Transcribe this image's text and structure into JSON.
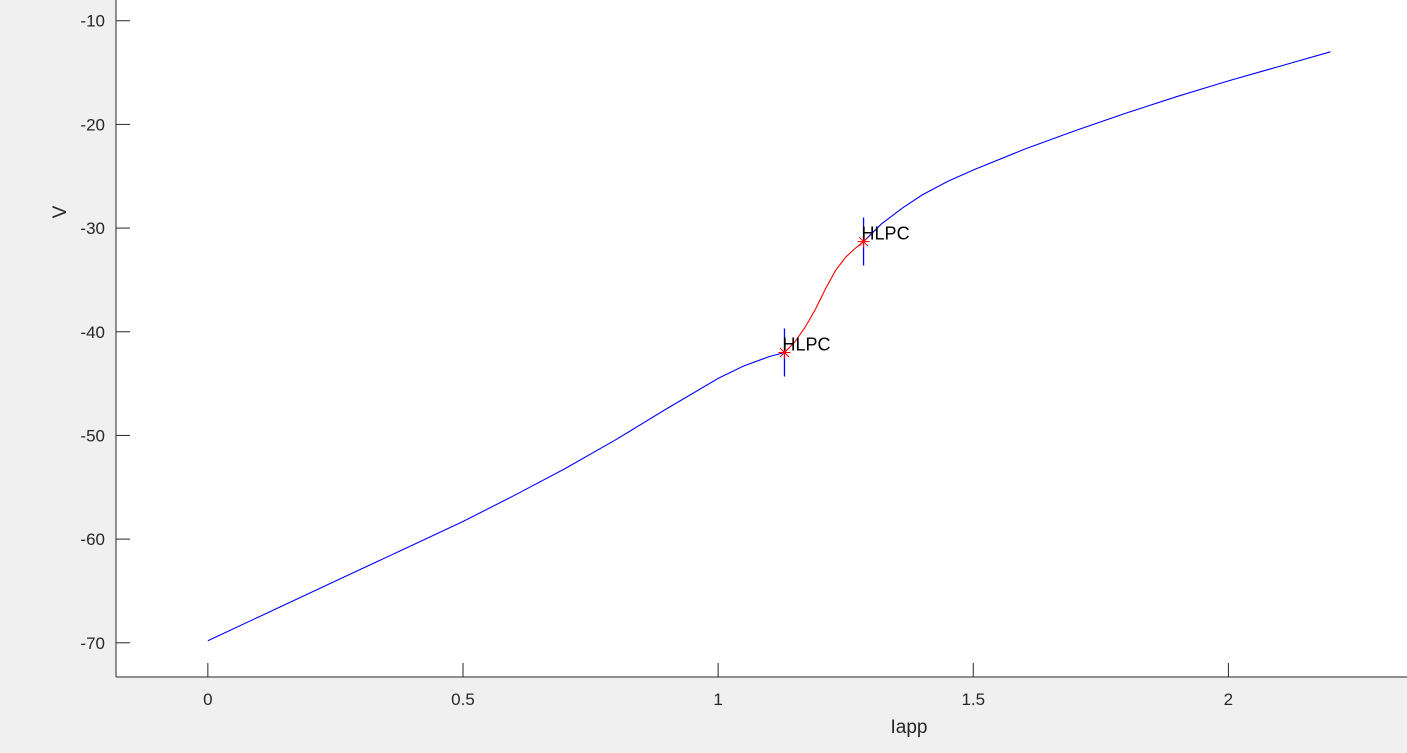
{
  "colors": {
    "figure_background": "#f0f0f0",
    "axes_background": "#ffffff",
    "stable_branch": "#0000ff",
    "unstable_branch": "#ff0000",
    "axis_color": "#262626",
    "annotation": "#000000"
  },
  "chart_data": {
    "type": "line",
    "title": "",
    "xlabel": "Iapp",
    "ylabel": "V",
    "xlim": [
      -0.18,
      2.35
    ],
    "ylim": [
      -73.3,
      -8
    ],
    "xticks": [
      0,
      0.5,
      1,
      1.5,
      2
    ],
    "xtick_labels": [
      "0",
      "0.5",
      "1",
      "1.5",
      "2"
    ],
    "yticks": [
      -70,
      -60,
      -50,
      -40,
      -30,
      -20,
      -10
    ],
    "ytick_labels": [
      "-70",
      "-60",
      "-50",
      "-40",
      "-30",
      "-20",
      "-10"
    ],
    "grid": false,
    "box": false,
    "series": [
      {
        "color": "#0000ff",
        "x": [
          0,
          0.1,
          0.2,
          0.3,
          0.4,
          0.5,
          0.6,
          0.7,
          0.8,
          0.9,
          1.0,
          1.05,
          1.1,
          1.13
        ],
        "y": [
          -69.8,
          -67.5,
          -65.2,
          -62.9,
          -60.6,
          -58.3,
          -55.8,
          -53.2,
          -50.4,
          -47.4,
          -44.5,
          -43.3,
          -42.4,
          -42.0
        ]
      },
      {
        "color": "#ff0000",
        "x": [
          1.13,
          1.15,
          1.17,
          1.19,
          1.21,
          1.23,
          1.25,
          1.27,
          1.285
        ],
        "y": [
          -42.0,
          -41.0,
          -39.6,
          -37.9,
          -35.9,
          -34.1,
          -32.8,
          -31.9,
          -31.3
        ]
      },
      {
        "color": "#0000ff",
        "x": [
          1.285,
          1.32,
          1.36,
          1.4,
          1.45,
          1.5,
          1.6,
          1.7,
          1.8,
          1.9,
          2.0,
          2.1,
          2.2
        ],
        "y": [
          -31.3,
          -29.6,
          -28.1,
          -26.8,
          -25.5,
          -24.4,
          -22.4,
          -20.6,
          -18.9,
          -17.3,
          -15.8,
          -14.4,
          -13.0
        ]
      }
    ],
    "points": [
      {
        "label": "H",
        "x": 1.13,
        "y": -42.0
      },
      {
        "label": "LPC",
        "x": 1.13,
        "y": -42.0
      },
      {
        "label": "H",
        "x": 1.285,
        "y": -31.3
      },
      {
        "label": "LPC",
        "x": 1.285,
        "y": -31.3
      }
    ]
  }
}
